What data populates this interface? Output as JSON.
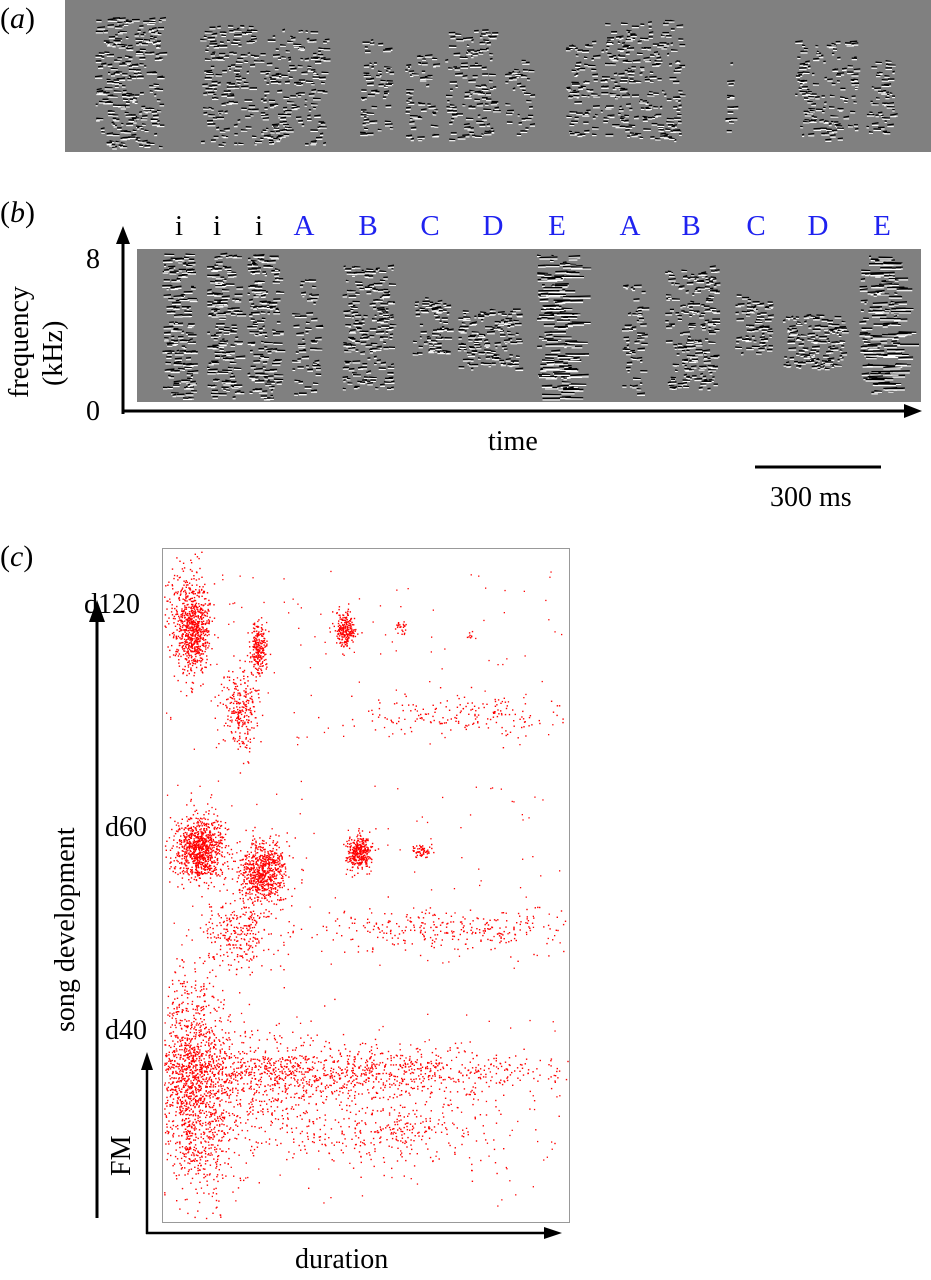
{
  "panels": {
    "a": {
      "label_open": "(",
      "label_letter": "a",
      "label_close": ")"
    },
    "b": {
      "label_open": "(",
      "label_letter": "b",
      "label_close": ")",
      "segments": [
        {
          "text": "i",
          "color": "#000000"
        },
        {
          "text": "i",
          "color": "#000000"
        },
        {
          "text": "i",
          "color": "#000000"
        },
        {
          "text": "A",
          "color": "#1f22f0"
        },
        {
          "text": "B",
          "color": "#1f22f0"
        },
        {
          "text": "C",
          "color": "#1f22f0"
        },
        {
          "text": "D",
          "color": "#1f22f0"
        },
        {
          "text": "E",
          "color": "#1f22f0"
        },
        {
          "text": "A",
          "color": "#1f22f0"
        },
        {
          "text": "B",
          "color": "#1f22f0"
        },
        {
          "text": "C",
          "color": "#1f22f0"
        },
        {
          "text": "D",
          "color": "#1f22f0"
        },
        {
          "text": "E",
          "color": "#1f22f0"
        }
      ],
      "ylabel_line1": "frequency",
      "ylabel_line2": "(kHz)",
      "ytick_top": "8",
      "ytick_bottom": "0",
      "xlabel": "time",
      "scalebar_label": "300 ms"
    },
    "c": {
      "label_open": "(",
      "label_letter": "c",
      "label_close": ")",
      "ylabel": "song development",
      "days": [
        "d120",
        "d60",
        "d40"
      ],
      "inner_ylabel": "FM",
      "xlabel": "duration"
    }
  },
  "colors": {
    "spectrogram_bg": "#808080",
    "scatter": "#ff0000",
    "segment_blue": "#1f22f0"
  }
}
